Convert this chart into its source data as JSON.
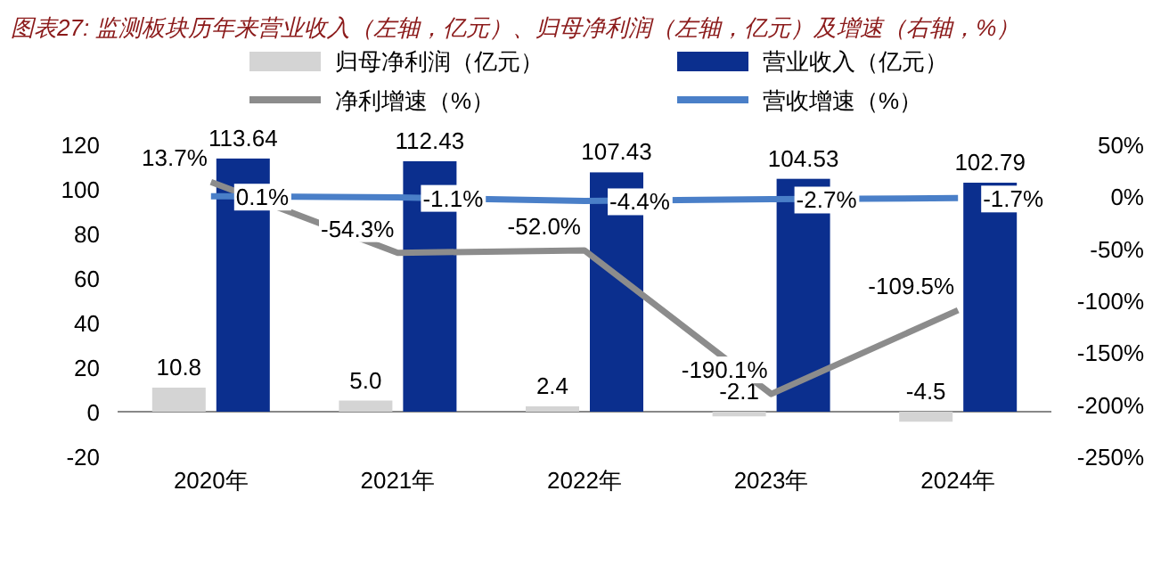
{
  "chart_data": {
    "type": "bar",
    "title": "图表27: 监测板块历年来营业收入（左轴，亿元）、归母净利润（左轴，亿元）及增速（右轴，%）",
    "categories": [
      "2020年",
      "2021年",
      "2022年",
      "2023年",
      "2024年"
    ],
    "series": [
      {
        "name": "归母净利润（亿元）",
        "color": "#d4d4d4",
        "values": [
          10.8,
          5.0,
          2.4,
          -2.1,
          -4.5
        ],
        "value_labels": [
          "10.8",
          "5.0",
          "2.4",
          "-2.1",
          "-4.5"
        ]
      },
      {
        "name": "营业收入（亿元）",
        "color": "#0b2f8e",
        "values": [
          113.64,
          112.43,
          107.43,
          104.53,
          102.79
        ],
        "value_labels": [
          "113.64",
          "112.43",
          "107.43",
          "104.53",
          "102.79"
        ]
      },
      {
        "name": "净利增速（%）",
        "type": "line",
        "axis": "y2",
        "color": "#8c8c8c",
        "values": [
          13.7,
          -54.3,
          -52.0,
          -190.1,
          -109.5
        ],
        "value_labels": [
          "13.7%",
          "-54.3%",
          "-52.0%",
          "-190.1%",
          "-109.5%"
        ]
      },
      {
        "name": "营收增速（%）",
        "type": "line",
        "axis": "y2",
        "color": "#4a7fc8",
        "values": [
          0.1,
          -1.1,
          -4.4,
          -2.7,
          -1.7
        ],
        "value_labels": [
          "0.1%",
          "-1.1%",
          "-4.4%",
          "-2.7%",
          "-1.7%"
        ]
      }
    ],
    "ylim": [
      -20,
      120
    ],
    "yticks": [
      -20,
      0,
      20,
      40,
      60,
      80,
      100,
      120
    ],
    "y2lim": [
      -250,
      50
    ],
    "y2ticks": [
      {
        "value": 50,
        "label": "50%"
      },
      {
        "value": 0,
        "label": "0%"
      },
      {
        "value": -50,
        "label": "-50%"
      },
      {
        "value": -100,
        "label": "-100%"
      },
      {
        "value": -150,
        "label": "-150%"
      },
      {
        "value": -200,
        "label": "-200%"
      },
      {
        "value": -250,
        "label": "-250%"
      }
    ],
    "legend": "top",
    "grid": false
  }
}
